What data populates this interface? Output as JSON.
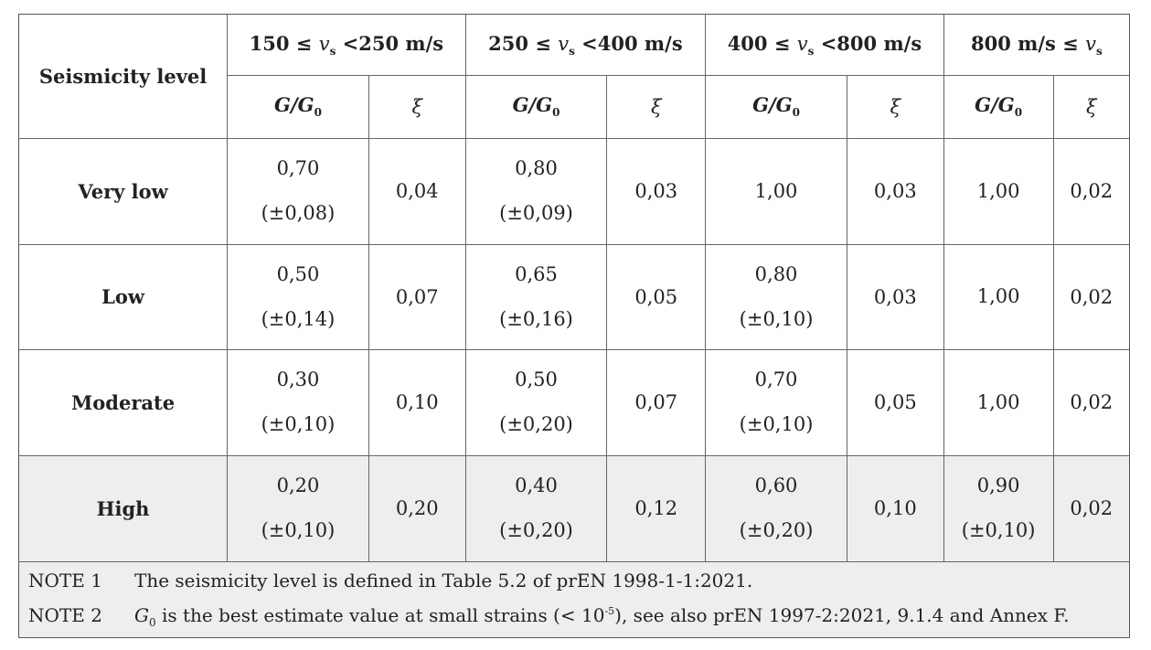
{
  "header": {
    "seismicity_label": "Seismicity level",
    "bands": [
      {
        "pre": "150 ≤ ",
        "v": "v",
        "s": "s",
        "post": " <250 m/s"
      },
      {
        "pre": "250 ≤ ",
        "v": "v",
        "s": "s",
        "post": " <400 m/s"
      },
      {
        "pre": "400 ≤ ",
        "v": "v",
        "s": "s",
        "post": " <800 m/s"
      },
      {
        "pre": "800 m/s ≤ ",
        "v": "v",
        "s": "s",
        "post": ""
      }
    ],
    "g_label": "G/G",
    "g_sub": "0",
    "xi_label": "ξ"
  },
  "rows": [
    {
      "level": "Very low",
      "cells": [
        {
          "g": "0,70",
          "unc": "(±0,08)",
          "xi": "0,04"
        },
        {
          "g": "0,80",
          "unc": "(±0,09)",
          "xi": "0,03"
        },
        {
          "g": "1,00",
          "unc": "",
          "xi": "0,03"
        },
        {
          "g": "1,00",
          "unc": "",
          "xi": "0,02"
        }
      ]
    },
    {
      "level": "Low",
      "cells": [
        {
          "g": "0,50",
          "unc": "(±0,14)",
          "xi": "0,07"
        },
        {
          "g": "0,65",
          "unc": "(±0,16)",
          "xi": "0,05"
        },
        {
          "g": "0,80",
          "unc": "(±0,10)",
          "xi": "0,03"
        },
        {
          "g": "1,00",
          "unc": "",
          "xi": "0,02"
        }
      ]
    },
    {
      "level": "Moderate",
      "cells": [
        {
          "g": "0,30",
          "unc": "(±0,10)",
          "xi": "0,10"
        },
        {
          "g": "0,50",
          "unc": "(±0,20)",
          "xi": "0,07"
        },
        {
          "g": "0,70",
          "unc": "(±0,10)",
          "xi": "0,05"
        },
        {
          "g": "1,00",
          "unc": "",
          "xi": "0,02"
        }
      ]
    },
    {
      "level": "High",
      "cells": [
        {
          "g": "0,20",
          "unc": "(±0,10)",
          "xi": "0,20"
        },
        {
          "g": "0,40",
          "unc": "(±0,20)",
          "xi": "0,12"
        },
        {
          "g": "0,60",
          "unc": "(±0,20)",
          "xi": "0,10"
        },
        {
          "g": "0,90",
          "unc": "(±0,10)",
          "xi": "0,02"
        }
      ]
    }
  ],
  "notes": {
    "note1_label": "NOTE 1",
    "note1_text": "The seismicity level is defined in Table 5.2 of prEN 1998-1-1:2021.",
    "note2_label": "NOTE 2",
    "note2_g": "G",
    "note2_sub": "0",
    "note2_text_a": " is the best estimate value at small strains (< 10",
    "note2_sup": "-5",
    "note2_text_b": "), see also prEN 1997-2:2021, 9.1.4 and Annex F."
  }
}
